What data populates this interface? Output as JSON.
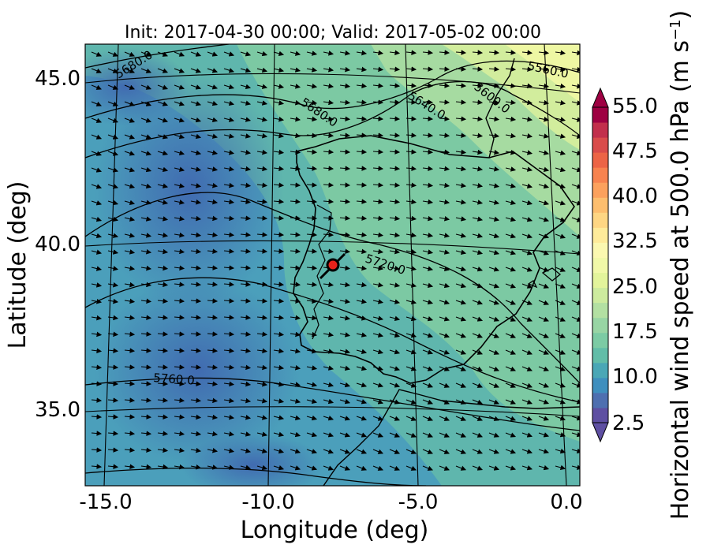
{
  "title": "Init: 2017-04-30 00:00; Valid: 2017-05-02 00:00",
  "axes": {
    "xlabel": "Longitude (deg)",
    "ylabel": "Latitude (deg)",
    "xticks": [
      "-15.0",
      "-10.0",
      "-5.0",
      "0.0"
    ],
    "yticks": [
      "45.0",
      "40.0",
      "35.0"
    ],
    "xlim": [
      -16,
      0.2
    ],
    "ylim": [
      32.8,
      46.1
    ]
  },
  "colorbar": {
    "label": "Horizontal wind speed at 500.0 hPa (m s",
    "label_sup": "−1",
    "label_end": ")",
    "ticks": [
      "55.0",
      "47.5",
      "40.0",
      "32.5",
      "25.0",
      "17.5",
      "10.0",
      "2.5"
    ],
    "range": [
      2.5,
      55.0
    ],
    "levels": 21,
    "colors": [
      "#5e4fa2",
      "#4e6fb0",
      "#3f8fbe",
      "#4aa7b6",
      "#62bda8",
      "#7ccba4",
      "#98d5a4",
      "#b3e0a2",
      "#cdeb9e",
      "#e3f49b",
      "#f1f8a8",
      "#fbf8b0",
      "#feeb9a",
      "#fed683",
      "#fdbe6e",
      "#fca15d",
      "#f7834f",
      "#ec6446",
      "#d94c4b",
      "#c22f4c",
      "#9e0142"
    ]
  },
  "contours": {
    "labels": [
      "5680.0",
      "5560.0",
      "5640.0",
      "5600.0",
      "5680.0",
      "5720.0",
      "5760.0"
    ]
  },
  "marker": {
    "lon": -7.7,
    "lat": 39.4,
    "color": "#e8221a"
  },
  "wind": {
    "direction": "north-westerly"
  }
}
